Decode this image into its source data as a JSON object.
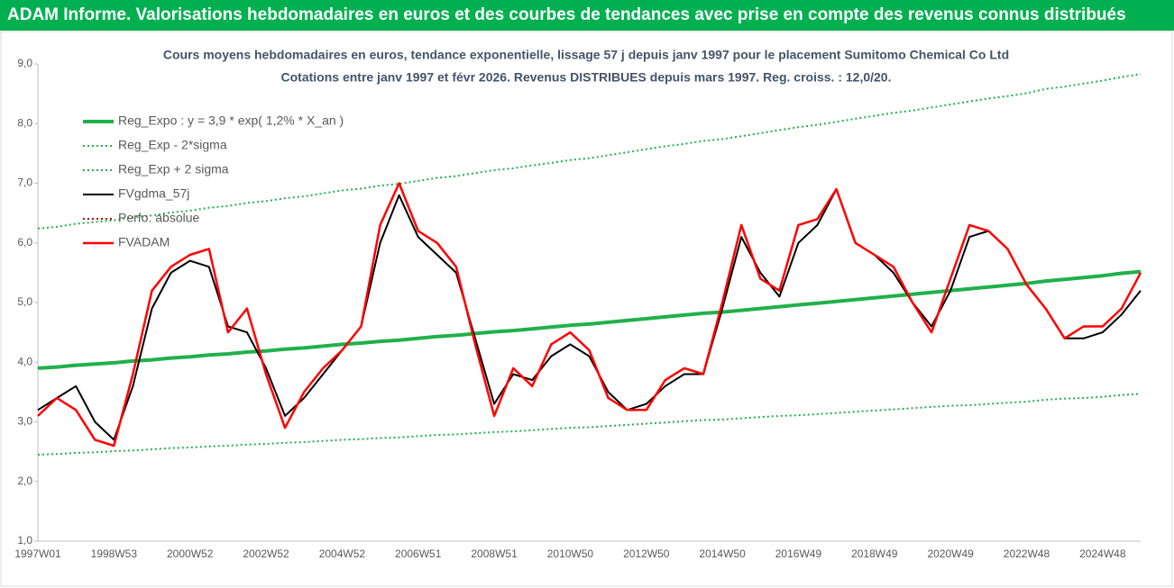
{
  "header": {
    "title": "ADAM Informe. Valorisations hebdomadaires en euros et des courbes de tendances avec prise en compte des revenus connus distribués"
  },
  "chart_data": {
    "type": "line",
    "title": "Cours moyens hebdomadaires en euros, tendance exponentielle, lissage 57 j depuis janv 1997 pour le placement Sumitomo Chemical Co Ltd",
    "subtitle": "Cotations entre janv 1997 et févr 2026. Revenus DISTRIBUES depuis mars 1997. Reg. croiss. : 12,0/20.",
    "categories": [
      "1997W01",
      null,
      null,
      null,
      "1998W53",
      null,
      null,
      null,
      "2000W52",
      null,
      null,
      null,
      "2002W52",
      null,
      null,
      null,
      "2004W52",
      null,
      null,
      null,
      "2006W51",
      null,
      null,
      null,
      "2008W51",
      null,
      null,
      null,
      "2010W50",
      null,
      null,
      null,
      "2012W50",
      null,
      null,
      null,
      "2014W50",
      null,
      null,
      null,
      "2016W49",
      null,
      null,
      null,
      "2018W49",
      null,
      null,
      null,
      "2020W49",
      null,
      null,
      null,
      "2022W48",
      null,
      null,
      null,
      "2024W48",
      null,
      null
    ],
    "ylim": [
      1,
      9
    ],
    "yticks": [
      {
        "value": 1,
        "label": "1,0"
      },
      {
        "value": 2,
        "label": "2,0"
      },
      {
        "value": 3,
        "label": "3,0"
      },
      {
        "value": 4,
        "label": "4,0"
      },
      {
        "value": 5,
        "label": "5,0"
      },
      {
        "value": 6,
        "label": "6,0"
      },
      {
        "value": 7,
        "label": "7,0"
      },
      {
        "value": 8,
        "label": "8,0"
      },
      {
        "value": 9,
        "label": "9,0"
      }
    ],
    "series": [
      {
        "name": "Reg_Expo : y = 3,9 * exp( 1,2% *  X_an )",
        "color": "#21b04b",
        "dash": "solid",
        "width": 4,
        "values": [
          3.9,
          3.92,
          3.95,
          3.97,
          3.99,
          4.02,
          4.04,
          4.07,
          4.09,
          4.12,
          4.14,
          4.17,
          4.19,
          4.22,
          4.24,
          4.27,
          4.3,
          4.32,
          4.35,
          4.37,
          4.4,
          4.43,
          4.45,
          4.48,
          4.51,
          4.53,
          4.56,
          4.59,
          4.62,
          4.64,
          4.67,
          4.7,
          4.73,
          4.76,
          4.79,
          4.82,
          4.84,
          4.87,
          4.9,
          4.93,
          4.96,
          4.99,
          5.02,
          5.05,
          5.08,
          5.11,
          5.14,
          5.17,
          5.2,
          5.23,
          5.26,
          5.29,
          5.32,
          5.36,
          5.39,
          5.42,
          5.45,
          5.49,
          5.52
        ]
      },
      {
        "name": "Reg_Exp - 2*sigma",
        "color": "#21b04b",
        "dash": "dotted",
        "width": 2,
        "values": [
          2.45,
          2.46,
          2.48,
          2.49,
          2.51,
          2.52,
          2.54,
          2.56,
          2.57,
          2.59,
          2.6,
          2.62,
          2.63,
          2.65,
          2.66,
          2.68,
          2.7,
          2.71,
          2.73,
          2.74,
          2.76,
          2.78,
          2.79,
          2.81,
          2.83,
          2.84,
          2.86,
          2.88,
          2.9,
          2.91,
          2.93,
          2.95,
          2.97,
          2.99,
          3.01,
          3.03,
          3.04,
          3.06,
          3.08,
          3.1,
          3.11,
          3.13,
          3.15,
          3.17,
          3.19,
          3.21,
          3.23,
          3.25,
          3.27,
          3.28,
          3.3,
          3.32,
          3.34,
          3.37,
          3.39,
          3.4,
          3.42,
          3.45,
          3.47
        ]
      },
      {
        "name": "Reg_Exp + 2 sigma",
        "color": "#21b04b",
        "dash": "dotted",
        "width": 2,
        "values": [
          6.24,
          6.27,
          6.32,
          6.35,
          6.38,
          6.43,
          6.46,
          6.51,
          6.54,
          6.59,
          6.62,
          6.67,
          6.7,
          6.75,
          6.78,
          6.83,
          6.88,
          6.91,
          6.96,
          6.99,
          7.04,
          7.09,
          7.12,
          7.17,
          7.22,
          7.25,
          7.3,
          7.34,
          7.39,
          7.42,
          7.47,
          7.52,
          7.57,
          7.62,
          7.66,
          7.71,
          7.74,
          7.79,
          7.84,
          7.89,
          7.94,
          7.98,
          8.03,
          8.08,
          8.13,
          8.18,
          8.22,
          8.27,
          8.32,
          8.37,
          8.42,
          8.46,
          8.51,
          8.58,
          8.62,
          8.67,
          8.72,
          8.78,
          8.83
        ]
      },
      {
        "name": "FVgdma_57j",
        "color": "#000000",
        "dash": "solid",
        "width": 2,
        "values": [
          3.2,
          3.4,
          3.6,
          3.0,
          2.7,
          3.6,
          4.9,
          5.5,
          5.7,
          5.6,
          4.6,
          4.5,
          3.9,
          3.1,
          3.4,
          3.8,
          4.2,
          4.6,
          6.0,
          6.8,
          6.1,
          5.8,
          5.5,
          4.4,
          3.3,
          3.8,
          3.7,
          4.1,
          4.3,
          4.1,
          3.5,
          3.2,
          3.3,
          3.6,
          3.8,
          3.8,
          4.9,
          6.1,
          5.5,
          5.1,
          6.0,
          6.3,
          6.9,
          6.0,
          5.8,
          5.5,
          5.0,
          4.6,
          5.2,
          6.1,
          6.2,
          5.9,
          5.3,
          4.9,
          4.4,
          4.4,
          4.5,
          4.8,
          5.2
        ]
      },
      {
        "name": "Perfo. absolue",
        "color": "#c00000",
        "dash": "dotted",
        "width": 2,
        "values": [
          null,
          null,
          null,
          null,
          null,
          null,
          null,
          null,
          null,
          null,
          null,
          null,
          null,
          null,
          null,
          null,
          null,
          null,
          null,
          null,
          null,
          null,
          null,
          null,
          null,
          null,
          null,
          null,
          null,
          null,
          null,
          null,
          null,
          null,
          null,
          null,
          null,
          null,
          null,
          null,
          null,
          null,
          null,
          null,
          null,
          null,
          null,
          null,
          null,
          null,
          null,
          null,
          null,
          null,
          null,
          null,
          null,
          null,
          null
        ]
      },
      {
        "name": "FVADAM",
        "color": "#ff0000",
        "dash": "solid",
        "width": 2.5,
        "values": [
          3.1,
          3.4,
          3.2,
          2.7,
          2.6,
          3.8,
          5.2,
          5.6,
          5.8,
          5.9,
          4.5,
          4.9,
          3.8,
          2.9,
          3.5,
          3.9,
          4.2,
          4.6,
          6.3,
          7.0,
          6.2,
          6.0,
          5.6,
          4.3,
          3.1,
          3.9,
          3.6,
          4.3,
          4.5,
          4.2,
          3.4,
          3.2,
          3.2,
          3.7,
          3.9,
          3.8,
          5.0,
          6.3,
          5.4,
          5.2,
          6.3,
          6.4,
          6.9,
          6.0,
          5.8,
          5.6,
          5.0,
          4.5,
          5.4,
          6.3,
          6.2,
          5.9,
          5.3,
          4.9,
          4.4,
          4.6,
          4.6,
          4.9,
          5.5
        ]
      }
    ]
  }
}
